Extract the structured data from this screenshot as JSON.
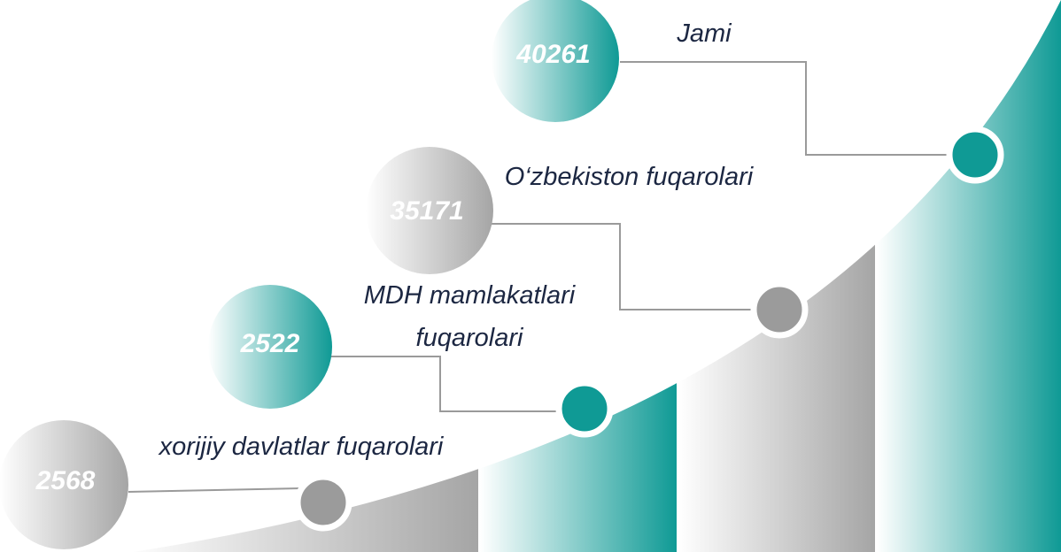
{
  "items": [
    {
      "value": "2568",
      "label": "xorijiy davlatlar fuqarolari"
    },
    {
      "value": "2522",
      "label": "MDH mamlakatlari fuqarolari"
    },
    {
      "value": "35171",
      "label": "O‘zbekiston fuqarolari"
    },
    {
      "value": "40261",
      "label": "Jami"
    }
  ]
}
